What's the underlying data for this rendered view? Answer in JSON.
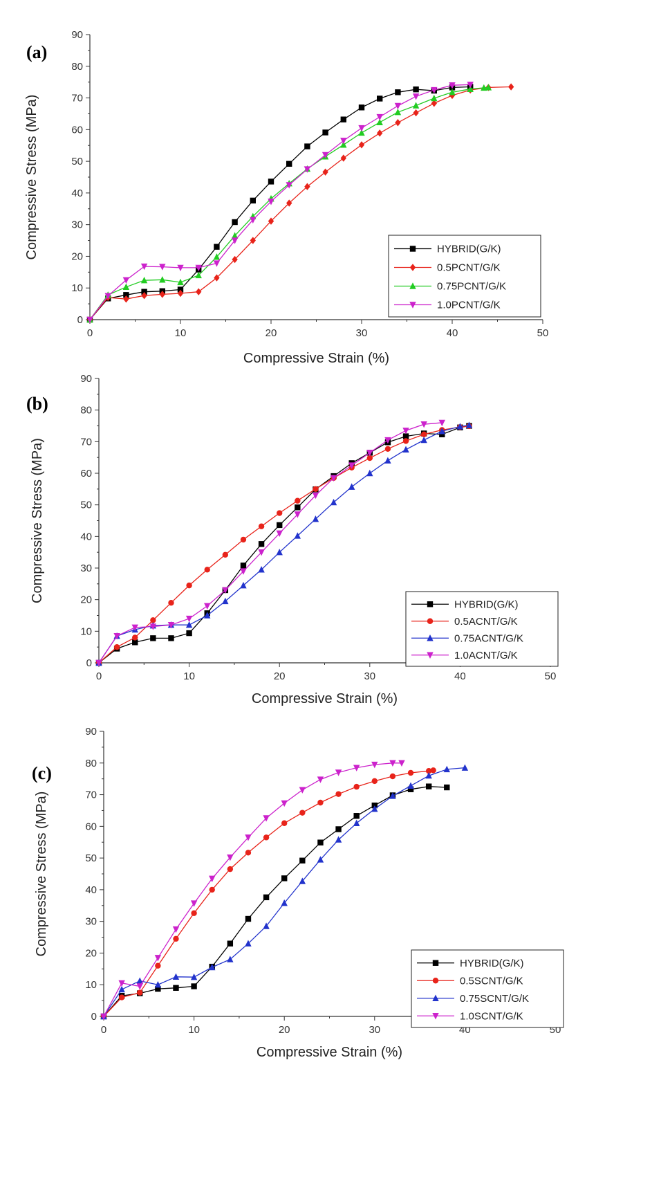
{
  "figure": {
    "panel_labels": [
      "(a)",
      "(b)",
      "(c)"
    ]
  },
  "chart_data": [
    {
      "type": "line",
      "panel": "(a)",
      "xlabel": "Compressive Strain (%)",
      "ylabel": "Compressive Stress (MPa)",
      "xlim": [
        0,
        50
      ],
      "ylim": [
        0,
        90
      ],
      "xticks": [
        0,
        10,
        20,
        30,
        40,
        50
      ],
      "yticks": [
        0,
        10,
        20,
        30,
        40,
        50,
        60,
        70,
        80,
        90
      ],
      "legend_position": "bottom-right",
      "series": [
        {
          "name": "HYBRID(G/K)",
          "color": "#000000",
          "marker": "square",
          "x": [
            0,
            2,
            4,
            6,
            8,
            10,
            12,
            14,
            16,
            18,
            20,
            22,
            24,
            26,
            28,
            30,
            32,
            34,
            36,
            38,
            40,
            42
          ],
          "y": [
            0,
            6.7,
            7.8,
            8.8,
            9,
            9.5,
            15.8,
            23,
            30.8,
            37.6,
            43.6,
            49.2,
            54.7,
            59.1,
            63.2,
            67,
            69.8,
            71.8,
            72.7,
            72.3,
            73.3,
            73.5
          ]
        },
        {
          "name": "0.5PCNT/G/K",
          "color": "#e8231a",
          "marker": "diamond",
          "x": [
            0,
            2,
            4,
            6,
            8,
            10,
            12,
            14,
            16,
            18,
            20,
            22,
            24,
            26,
            28,
            30,
            32,
            34,
            36,
            38,
            40,
            42,
            44,
            46.5
          ],
          "y": [
            0,
            7,
            6.5,
            7.6,
            8,
            8.3,
            8.8,
            13.2,
            19,
            25,
            31.1,
            36.8,
            42,
            46.6,
            51,
            55.2,
            58.9,
            62.2,
            65.3,
            68.3,
            70.8,
            72.5,
            73.3,
            73.5
          ]
        },
        {
          "name": "0.75PCNT/G/K",
          "color": "#22cc22",
          "marker": "triangle-up",
          "x": [
            0,
            2,
            4,
            6,
            8,
            10,
            12,
            14,
            16,
            18,
            20,
            22,
            24,
            26,
            28,
            30,
            32,
            34,
            36,
            38,
            40,
            42,
            43.5,
            44
          ],
          "y": [
            0,
            7.8,
            10.3,
            12.4,
            12.6,
            11.8,
            14,
            19.8,
            26.5,
            32.6,
            38.2,
            43,
            47.6,
            51.5,
            55.2,
            59,
            62.3,
            65.5,
            67.6,
            69.9,
            71.8,
            72.8,
            73.2,
            73.3
          ]
        },
        {
          "name": "1.0PCNT/G/K",
          "color": "#cc22cc",
          "marker": "triangle-down",
          "x": [
            0,
            2,
            4,
            6,
            8,
            10,
            12,
            14,
            16,
            18,
            20,
            22,
            24,
            26,
            28,
            30,
            32,
            34,
            36,
            38,
            40,
            42
          ],
          "y": [
            0,
            7.5,
            12.5,
            16.8,
            16.7,
            16.4,
            16.4,
            17.8,
            25,
            31.5,
            37.3,
            42.5,
            47.5,
            52,
            56.5,
            60.5,
            64,
            67.5,
            70.5,
            72.5,
            74,
            74.2
          ]
        }
      ]
    },
    {
      "type": "line",
      "panel": "(b)",
      "xlabel": "Compressive Strain (%)",
      "ylabel": "Compressive Stress (MPa)",
      "xlim": [
        0,
        50
      ],
      "ylim": [
        0,
        90
      ],
      "xticks": [
        0,
        10,
        20,
        30,
        40,
        50
      ],
      "yticks": [
        0,
        10,
        20,
        30,
        40,
        50,
        60,
        70,
        80,
        90
      ],
      "legend_position": "bottom-right",
      "series": [
        {
          "name": "HYBRID(G/K)",
          "color": "#000000",
          "marker": "square",
          "x": [
            0,
            2,
            4,
            6,
            8,
            10,
            12,
            14,
            16,
            18,
            20,
            22,
            24,
            26,
            28,
            30,
            32,
            34,
            36,
            38,
            40,
            41
          ],
          "y": [
            0,
            4.5,
            6.5,
            7.8,
            7.8,
            9.4,
            15.7,
            23,
            30.8,
            37.6,
            43.6,
            49.2,
            54.9,
            59.1,
            63.2,
            66.5,
            69.8,
            71.7,
            72.6,
            72.3,
            74.5,
            75
          ]
        },
        {
          "name": "0.5ACNT/G/K",
          "color": "#e8231a",
          "marker": "circle",
          "x": [
            0,
            2,
            4,
            6,
            8,
            10,
            12,
            14,
            16,
            18,
            20,
            22,
            24,
            26,
            28,
            30,
            32,
            34,
            36,
            38,
            40,
            41
          ],
          "y": [
            0,
            5,
            8,
            13.5,
            19,
            24.5,
            29.5,
            34.2,
            39,
            43.2,
            47.4,
            51.3,
            55,
            58.5,
            61.8,
            64.8,
            67.7,
            70.2,
            72.3,
            73.7,
            74.6,
            74.9
          ]
        },
        {
          "name": "0.75ACNT/G/K",
          "color": "#2233cc",
          "marker": "triangle-up",
          "x": [
            0,
            2,
            4,
            6,
            8,
            10,
            12,
            14,
            16,
            18,
            20,
            22,
            24,
            26,
            28,
            30,
            32,
            34,
            36,
            38,
            40,
            41
          ],
          "y": [
            0,
            8.5,
            10.5,
            11.8,
            12,
            12,
            15,
            19.5,
            24.5,
            29.5,
            35,
            40.2,
            45.5,
            50.8,
            55.7,
            60,
            64,
            67.5,
            70.5,
            73.3,
            74.8,
            75.2
          ]
        },
        {
          "name": "1.0ACNT/G/K",
          "color": "#cc22cc",
          "marker": "triangle-down",
          "x": [
            0,
            2,
            4,
            6,
            8,
            10,
            12,
            14,
            16,
            18,
            20,
            22,
            24,
            26,
            28,
            30,
            32,
            34,
            36,
            38
          ],
          "y": [
            0,
            8.5,
            11.2,
            11.5,
            12,
            14,
            18,
            23,
            29,
            35,
            41,
            47,
            53,
            58.5,
            62.5,
            66.5,
            70.5,
            73.5,
            75.5,
            76
          ]
        }
      ]
    },
    {
      "type": "line",
      "panel": "(c)",
      "xlabel": "Compressive Strain (%)",
      "ylabel": "Compressive Stress (MPa)",
      "xlim": [
        0,
        50
      ],
      "ylim": [
        0,
        90
      ],
      "xticks": [
        0,
        10,
        20,
        30,
        40,
        50
      ],
      "yticks": [
        0,
        10,
        20,
        30,
        40,
        50,
        60,
        70,
        80,
        90
      ],
      "legend_position": "bottom-right",
      "series": [
        {
          "name": "HYBRID(G/K)",
          "color": "#000000",
          "marker": "square",
          "x": [
            0,
            2,
            4,
            6,
            8,
            10,
            12,
            14,
            16,
            18,
            20,
            22,
            24,
            26,
            28,
            30,
            32,
            34,
            36,
            38
          ],
          "y": [
            0,
            6.5,
            7.3,
            8.7,
            9,
            9.5,
            15.7,
            23,
            30.8,
            37.6,
            43.6,
            49.2,
            54.9,
            59.1,
            63.3,
            66.6,
            69.8,
            71.7,
            72.6,
            72.3
          ]
        },
        {
          "name": "0.5SCNT/G/K",
          "color": "#e8231a",
          "marker": "circle",
          "x": [
            0,
            2,
            4,
            6,
            8,
            10,
            12,
            14,
            16,
            18,
            20,
            22,
            24,
            26,
            28,
            30,
            32,
            34,
            36,
            36.5
          ],
          "y": [
            0,
            6,
            7.5,
            16,
            24.5,
            32.6,
            40,
            46.5,
            51.7,
            56.5,
            61,
            64.3,
            67.5,
            70.2,
            72.5,
            74.3,
            75.8,
            76.9,
            77.5,
            77.7
          ]
        },
        {
          "name": "0.75SCNT/G/K",
          "color": "#2233cc",
          "marker": "triangle-up",
          "x": [
            0,
            2,
            4,
            6,
            8,
            10,
            12,
            14,
            16,
            18,
            20,
            22,
            24,
            26,
            28,
            30,
            32,
            34,
            36,
            38,
            40
          ],
          "y": [
            0,
            8.5,
            11.2,
            10,
            12.5,
            12.4,
            15.5,
            18,
            23,
            28.5,
            35.8,
            42.7,
            49.5,
            55.8,
            61,
            65.5,
            69.6,
            72.8,
            76,
            78,
            78.5
          ]
        },
        {
          "name": "1.0SCNT/G/K",
          "color": "#cc22cc",
          "marker": "triangle-down",
          "x": [
            0,
            2,
            4,
            6,
            8,
            10,
            12,
            14,
            16,
            18,
            20,
            22,
            24,
            26,
            28,
            30,
            32,
            33
          ],
          "y": [
            0,
            10.5,
            9.5,
            18.5,
            27.5,
            35.7,
            43.5,
            50.2,
            56.5,
            62.6,
            67.3,
            71.5,
            74.8,
            77,
            78.5,
            79.5,
            80,
            80
          ]
        }
      ]
    }
  ]
}
